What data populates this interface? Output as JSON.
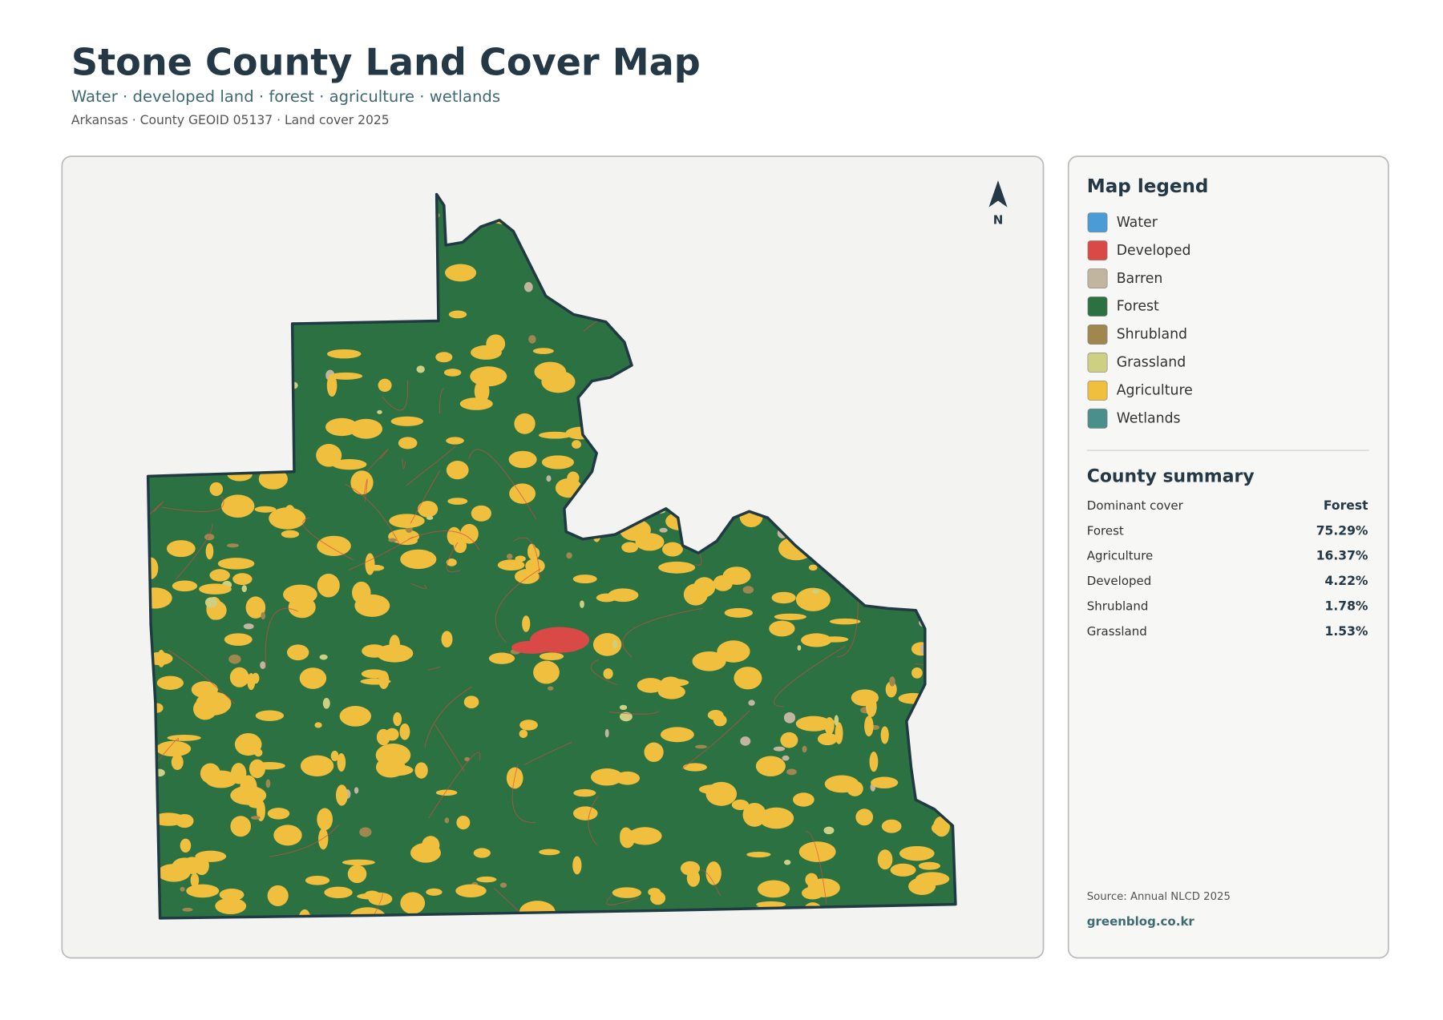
{
  "header": {
    "title": "Stone County Land Cover Map",
    "subtitle": "Water · developed land · forest · agriculture · wetlands",
    "meta": "Arkansas · County GEOID 05137 · Land cover 2025"
  },
  "north_label": "N",
  "legend": {
    "title": "Map legend",
    "items": [
      {
        "label": "Water",
        "color": "#4a9bd6"
      },
      {
        "label": "Developed",
        "color": "#d94a47"
      },
      {
        "label": "Barren",
        "color": "#c2b59f"
      },
      {
        "label": "Forest",
        "color": "#2b7142"
      },
      {
        "label": "Shrubland",
        "color": "#a0874f"
      },
      {
        "label": "Grassland",
        "color": "#cdd083"
      },
      {
        "label": "Agriculture",
        "color": "#f0bf3d"
      },
      {
        "label": "Wetlands",
        "color": "#4b8f8c"
      }
    ]
  },
  "summary": {
    "title": "County summary",
    "rows": [
      [
        "Dominant cover",
        "Forest"
      ],
      [
        "Forest",
        "75.29%"
      ],
      [
        "Agriculture",
        "16.37%"
      ],
      [
        "Developed",
        "4.22%"
      ],
      [
        "Shrubland",
        "1.78%"
      ],
      [
        "Grassland",
        "1.53%"
      ]
    ]
  },
  "footer": {
    "source": "Source: Annual NLCD 2025",
    "site": "greenblog.co.kr"
  }
}
